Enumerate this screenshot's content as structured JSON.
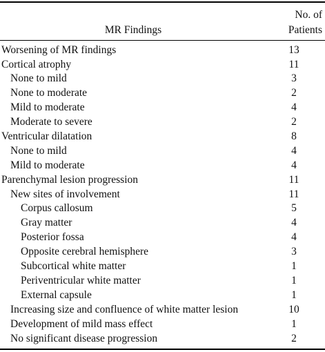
{
  "table": {
    "header": {
      "findings_label": "MR Findings",
      "count_label_line1": "No. of",
      "count_label_line2": "Patients"
    },
    "rows": [
      {
        "label": "Worsening of MR findings",
        "count": "13",
        "level": 0
      },
      {
        "label": "Cortical atrophy",
        "count": "11",
        "level": 0
      },
      {
        "label": "None to mild",
        "count": "3",
        "level": 1
      },
      {
        "label": "None to moderate",
        "count": "2",
        "level": 1
      },
      {
        "label": "Mild to moderate",
        "count": "4",
        "level": 1
      },
      {
        "label": "Moderate to severe",
        "count": "2",
        "level": 1
      },
      {
        "label": "Ventricular dilatation",
        "count": "8",
        "level": 0
      },
      {
        "label": "None to mild",
        "count": "4",
        "level": 1
      },
      {
        "label": "Mild to moderate",
        "count": "4",
        "level": 1
      },
      {
        "label": "Parenchymal lesion progression",
        "count": "11",
        "level": 0
      },
      {
        "label": "New sites of involvement",
        "count": "11",
        "level": 1
      },
      {
        "label": "Corpus callosum",
        "count": "5",
        "level": 2
      },
      {
        "label": "Gray matter",
        "count": "4",
        "level": 2
      },
      {
        "label": "Posterior fossa",
        "count": "4",
        "level": 2
      },
      {
        "label": "Opposite cerebral hemisphere",
        "count": "3",
        "level": 2
      },
      {
        "label": "Subcortical white matter",
        "count": "1",
        "level": 2
      },
      {
        "label": "Periventricular white matter",
        "count": "1",
        "level": 2
      },
      {
        "label": "External capsule",
        "count": "1",
        "level": 2
      },
      {
        "label": "Increasing size and confluence of white matter lesion",
        "count": "10",
        "level": 1
      },
      {
        "label": "Development of mild mass effect",
        "count": "1",
        "level": 1
      },
      {
        "label": "No significant disease progression",
        "count": "2",
        "level": 1
      }
    ]
  }
}
